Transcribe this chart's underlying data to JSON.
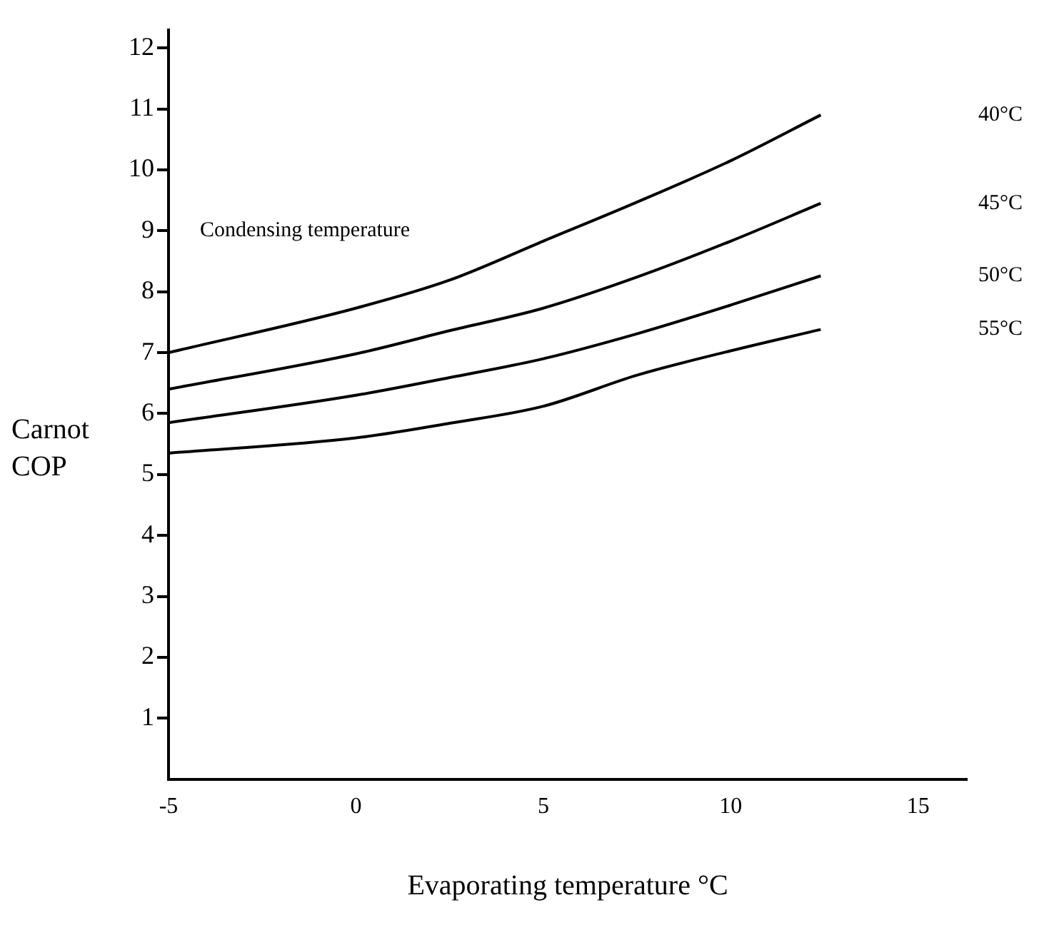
{
  "chart_data": {
    "type": "line",
    "xlabel": "Evaporating temperature °C",
    "ylabel": "Carnot COP",
    "annotations": [
      "Condensing temperature"
    ],
    "x": [
      -5,
      0,
      2.5,
      5,
      7.5,
      10,
      12.4
    ],
    "series": [
      {
        "name": "40°C",
        "color": "#000000",
        "values": [
          7.0,
          7.73,
          8.19,
          8.83,
          9.47,
          10.15,
          10.9
        ]
      },
      {
        "name": "45°C",
        "color": "#000000",
        "values": [
          6.4,
          6.98,
          7.36,
          7.73,
          8.24,
          8.83,
          9.45
        ]
      },
      {
        "name": "50°C",
        "color": "#000000",
        "values": [
          5.85,
          6.3,
          6.59,
          6.9,
          7.31,
          7.78,
          8.26
        ]
      },
      {
        "name": "55°C",
        "color": "#000000",
        "values": [
          5.35,
          5.6,
          5.84,
          6.12,
          6.63,
          7.03,
          7.38
        ]
      }
    ],
    "xlim": [
      -5,
      16.3
    ],
    "xticks": [
      -5,
      0,
      5,
      10,
      15
    ],
    "ylim": [
      0,
      12.3
    ],
    "yticks": [
      1,
      2,
      3,
      4,
      5,
      6,
      7,
      8,
      9,
      10,
      11,
      12
    ],
    "grid": false,
    "legend": false,
    "marker": "none",
    "line_style": "solid"
  }
}
